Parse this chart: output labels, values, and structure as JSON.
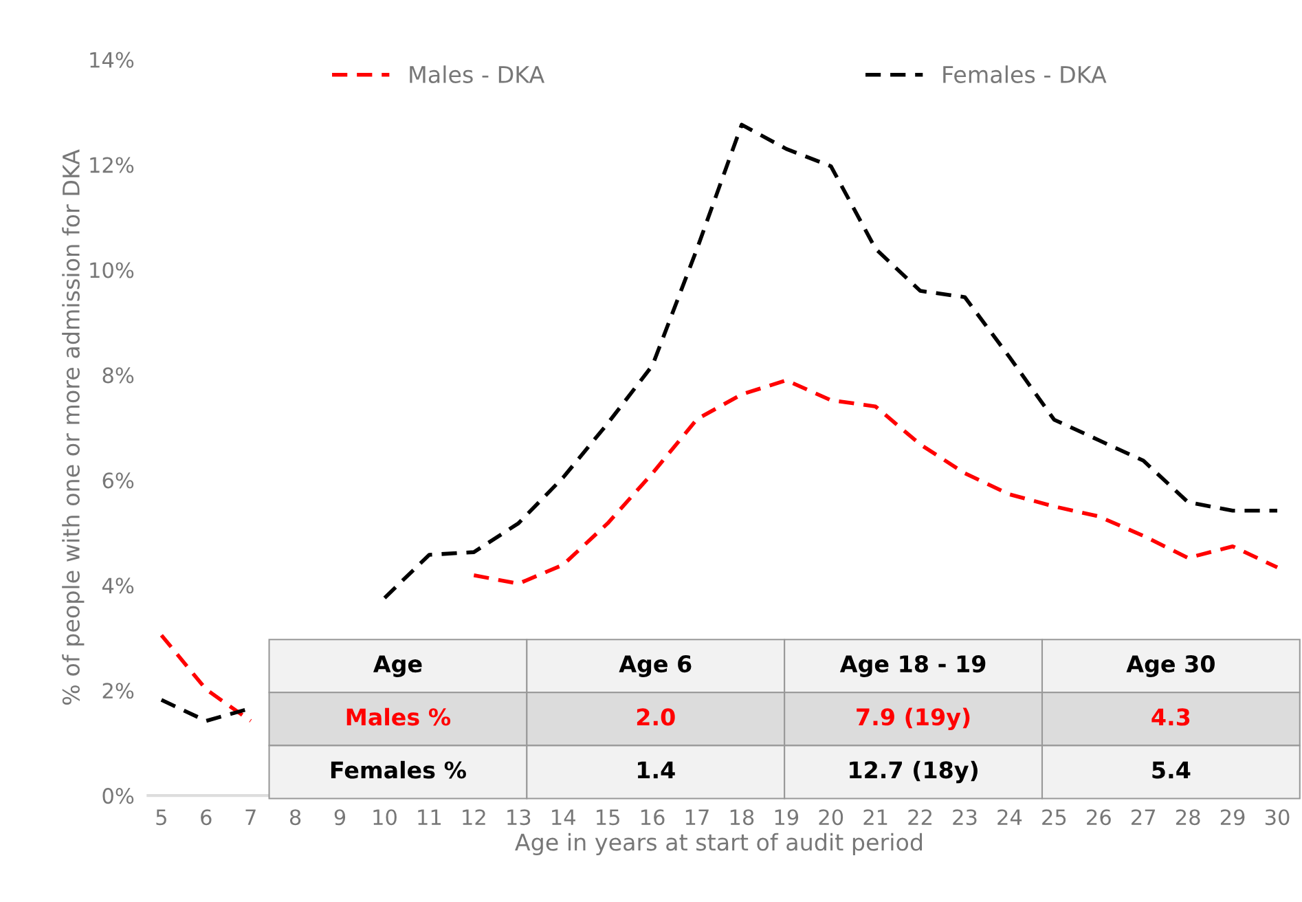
{
  "chart_data": {
    "type": "line",
    "xlabel": "Age in years at start of audit period",
    "ylabel": "% of people with one or more admission for DKA",
    "categories": [
      "5",
      "6",
      "7",
      "8",
      "9",
      "10",
      "11",
      "12",
      "13",
      "14",
      "15",
      "16",
      "17",
      "18",
      "19",
      "20",
      "21",
      "22",
      "23",
      "24",
      "25",
      "26",
      "27",
      "28",
      "29",
      "30"
    ],
    "series": [
      {
        "name": "Males - DKA",
        "color": "#ff0000",
        "values": [
          3.05,
          2.02,
          1.42,
          null,
          null,
          null,
          null,
          4.19,
          4.03,
          4.39,
          5.18,
          6.13,
          7.16,
          7.63,
          7.9,
          7.52,
          7.4,
          6.68,
          6.13,
          5.73,
          5.5,
          5.31,
          4.94,
          4.52,
          4.74,
          4.34
        ]
      },
      {
        "name": "Females - DKA",
        "color": "#000000",
        "values": [
          1.82,
          1.42,
          1.66,
          null,
          null,
          3.76,
          4.58,
          4.63,
          5.18,
          6.05,
          7.08,
          8.18,
          10.4,
          12.76,
          12.3,
          11.97,
          10.4,
          9.6,
          9.48,
          8.34,
          7.15,
          6.76,
          6.37,
          5.58,
          5.42,
          5.42
        ]
      }
    ],
    "ylim": [
      0,
      14
    ],
    "yticks": [
      {
        "value": 0,
        "label": "0%"
      },
      {
        "value": 2,
        "label": "2%"
      },
      {
        "value": 4,
        "label": "4%"
      },
      {
        "value": 6,
        "label": "6%"
      },
      {
        "value": 8,
        "label": "8%"
      },
      {
        "value": 10,
        "label": "10%"
      },
      {
        "value": 12,
        "label": "12%"
      },
      {
        "value": 14,
        "label": "14%"
      }
    ],
    "line_style": "dashed",
    "marker": "none",
    "grid": false,
    "legend": "top",
    "annotations": [
      "Age",
      "Age 6",
      "Age 18 - 19",
      "Age 30",
      "Males %",
      "2.0",
      "7.9 (19y)",
      "4.3",
      "Females %",
      "1.4",
      "12.7 (18y)",
      "5.4"
    ]
  }
}
